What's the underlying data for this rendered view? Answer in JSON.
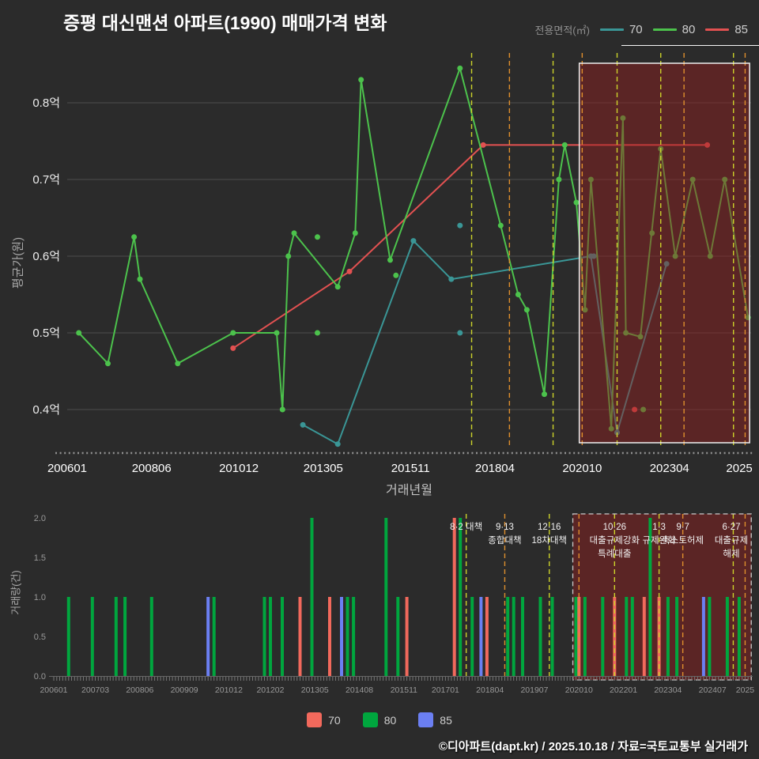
{
  "title": "증평 대신맨션 아파트(1990) 매매가격 변화",
  "footer": "©디아파트(dapt.kr) / 2025.10.18 / 자료=국토교통부 실거래가",
  "legend_top": {
    "label": "전용면적(㎡)",
    "items": [
      {
        "label": "70",
        "color": "#3a9696"
      },
      {
        "label": "80",
        "color": "#4cc24c"
      },
      {
        "label": "85",
        "color": "#e25151"
      }
    ]
  },
  "legend_bottom": {
    "items": [
      {
        "label": "70",
        "color": "#f2695c"
      },
      {
        "label": "80",
        "color": "#00a63e"
      },
      {
        "label": "85",
        "color": "#6b7ff2"
      }
    ]
  },
  "chart_data": [
    {
      "type": "line",
      "title": "매매가격 변화",
      "xlabel": "거래년월",
      "ylabel": "평균가(원)",
      "unit": "억원",
      "ylim": [
        0.33,
        0.87
      ],
      "yticks": [
        0.4,
        0.5,
        0.6,
        0.7,
        0.8
      ],
      "ytick_labels": [
        "0.4억",
        "0.5억",
        "0.6억",
        "0.7억",
        "0.8억"
      ],
      "xticks": [
        {
          "label": "200601",
          "month": "200601"
        },
        {
          "label": "200806",
          "month": "200806"
        },
        {
          "label": "201012",
          "month": "201012"
        },
        {
          "label": "201305",
          "month": "201305"
        },
        {
          "label": "201511",
          "month": "201511"
        },
        {
          "label": "201804",
          "month": "201804"
        },
        {
          "label": "202010",
          "month": "202010"
        },
        {
          "label": "202304",
          "month": "202304"
        },
        {
          "label": "2025",
          "month": "202504"
        }
      ],
      "series": [
        {
          "name": "70",
          "color": "#3a9696",
          "points": [
            [
              "201210",
              0.38
            ],
            [
              "201310",
              0.355
            ],
            [
              "201512",
              0.62
            ],
            [
              "201701",
              0.57
            ],
            [
              "202101",
              0.6
            ],
            [
              "202110",
              0.37
            ],
            [
              "202303",
              0.59
            ]
          ],
          "isolated": [
            [
              "201704",
              0.64
            ],
            [
              "201704",
              0.5
            ],
            [
              "202102",
              0.6
            ]
          ]
        },
        {
          "name": "80",
          "color": "#4cc24c",
          "points": [
            [
              "200605",
              0.5
            ],
            [
              "200703",
              0.46
            ],
            [
              "200712",
              0.625
            ],
            [
              "200802",
              0.57
            ],
            [
              "200903",
              0.46
            ],
            [
              "201010",
              0.5
            ],
            [
              "201201",
              0.5
            ],
            [
              "201203",
              0.4
            ],
            [
              "201205",
              0.6
            ],
            [
              "201207",
              0.63
            ],
            [
              "201310",
              0.56
            ],
            [
              "201404",
              0.63
            ],
            [
              "201406",
              0.83
            ],
            [
              "201504",
              0.595
            ],
            [
              "201704",
              0.845
            ],
            [
              "201806",
              0.64
            ],
            [
              "201812",
              0.55
            ],
            [
              "201903",
              0.53
            ],
            [
              "201909",
              0.42
            ],
            [
              "202002",
              0.7
            ],
            [
              "202004",
              0.745
            ],
            [
              "202008",
              0.67
            ],
            [
              "202011",
              0.53
            ],
            [
              "202101",
              0.7
            ],
            [
              "202108",
              0.375
            ],
            [
              "202112",
              0.78
            ],
            [
              "202201",
              0.5
            ],
            [
              "202206",
              0.495
            ],
            [
              "202301",
              0.74
            ],
            [
              "202306",
              0.6
            ],
            [
              "202312",
              0.7
            ],
            [
              "202406",
              0.6
            ],
            [
              "202411",
              0.7
            ],
            [
              "202507",
              0.52
            ]
          ],
          "isolated": [
            [
              "201303",
              0.625
            ],
            [
              "201303",
              0.5
            ],
            [
              "201506",
              0.575
            ],
            [
              "202207",
              0.4
            ],
            [
              "202210",
              0.63
            ]
          ]
        },
        {
          "name": "85",
          "color": "#e25151",
          "points": [
            [
              "201010",
              0.48
            ],
            [
              "201402",
              0.58
            ],
            [
              "201712",
              0.745
            ],
            [
              "202405",
              0.745
            ]
          ],
          "isolated": [
            [
              "202204",
              0.4
            ]
          ]
        }
      ],
      "vlines": [
        {
          "month": "201708",
          "color": "#ccd22b"
        },
        {
          "month": "201809",
          "color": "#df8f2d"
        },
        {
          "month": "201912",
          "color": "#ccd22b"
        },
        {
          "month": "202010",
          "color": "#df8f2d"
        },
        {
          "month": "202110",
          "color": "#ccd22b"
        },
        {
          "month": "202301",
          "color": "#ccd22b"
        },
        {
          "month": "202309",
          "color": "#df8f2d"
        },
        {
          "month": "202502",
          "color": "#ccd22b"
        },
        {
          "month": "202506",
          "color": "#df8f2d"
        }
      ],
      "highlight": {
        "from": "202009",
        "to": "202507",
        "fill": "rgba(150,30,30,0.45)",
        "border": "#f0f0f0"
      }
    },
    {
      "type": "bar",
      "ylabel": "거래량(건)",
      "ylim": [
        0,
        2
      ],
      "yticks": [
        0,
        0.5,
        1,
        1.5,
        2
      ],
      "ytick_labels": [
        "0.0",
        "0.5",
        "1.0",
        "1.5",
        "2.0"
      ],
      "series_colors": {
        "70": "#f2695c",
        "80": "#00a63e",
        "85": "#6b7ff2"
      },
      "xticks": [
        {
          "label": "200601",
          "month": "200601"
        },
        {
          "label": "200703",
          "month": "200703"
        },
        {
          "label": "200806",
          "month": "200806"
        },
        {
          "label": "200909",
          "month": "200909"
        },
        {
          "label": "201012",
          "month": "201012"
        },
        {
          "label": "201202",
          "month": "201202"
        },
        {
          "label": "201305",
          "month": "201305"
        },
        {
          "label": "201408",
          "month": "201408"
        },
        {
          "label": "201511",
          "month": "201511"
        },
        {
          "label": "201701",
          "month": "201701"
        },
        {
          "label": "201804",
          "month": "201804"
        },
        {
          "label": "201907",
          "month": "201907"
        },
        {
          "label": "202010",
          "month": "202010"
        },
        {
          "label": "202201",
          "month": "202201"
        },
        {
          "label": "202304",
          "month": "202304"
        },
        {
          "label": "202407",
          "month": "202407"
        },
        {
          "label": "2025",
          "month": "202506"
        }
      ],
      "bars": [
        {
          "month": "200606",
          "size": "80",
          "count": 1
        },
        {
          "month": "200702",
          "size": "80",
          "count": 1
        },
        {
          "month": "200710",
          "size": "80",
          "count": 1
        },
        {
          "month": "200801",
          "size": "80",
          "count": 1
        },
        {
          "month": "200810",
          "size": "80",
          "count": 1
        },
        {
          "month": "201005",
          "size": "85",
          "count": 1
        },
        {
          "month": "201007",
          "size": "80",
          "count": 1
        },
        {
          "month": "201112",
          "size": "80",
          "count": 1
        },
        {
          "month": "201202",
          "size": "80",
          "count": 1
        },
        {
          "month": "201206",
          "size": "80",
          "count": 1
        },
        {
          "month": "201212",
          "size": "70",
          "count": 1
        },
        {
          "month": "201304",
          "size": "80",
          "count": 2
        },
        {
          "month": "201310",
          "size": "70",
          "count": 1
        },
        {
          "month": "201402",
          "size": "85",
          "count": 1
        },
        {
          "month": "201404",
          "size": "80",
          "count": 1
        },
        {
          "month": "201406",
          "size": "80",
          "count": 1
        },
        {
          "month": "201505",
          "size": "80",
          "count": 2
        },
        {
          "month": "201509",
          "size": "80",
          "count": 1
        },
        {
          "month": "201512",
          "size": "70",
          "count": 1
        },
        {
          "month": "201704",
          "size": "70",
          "count": 2
        },
        {
          "month": "201706",
          "size": "80",
          "count": 2
        },
        {
          "month": "201710",
          "size": "80",
          "count": 1
        },
        {
          "month": "201801",
          "size": "85",
          "count": 1
        },
        {
          "month": "201803",
          "size": "70",
          "count": 1
        },
        {
          "month": "201810",
          "size": "80",
          "count": 1
        },
        {
          "month": "201812",
          "size": "80",
          "count": 1
        },
        {
          "month": "201903",
          "size": "80",
          "count": 1
        },
        {
          "month": "201909",
          "size": "80",
          "count": 1
        },
        {
          "month": "202001",
          "size": "80",
          "count": 1
        },
        {
          "month": "202009",
          "size": "80",
          "count": 1
        },
        {
          "month": "202010",
          "size": "70",
          "count": 1
        },
        {
          "month": "202012",
          "size": "80",
          "count": 1
        },
        {
          "month": "202106",
          "size": "80",
          "count": 1
        },
        {
          "month": "202110",
          "size": "70",
          "count": 1
        },
        {
          "month": "202202",
          "size": "80",
          "count": 1
        },
        {
          "month": "202204",
          "size": "80",
          "count": 1
        },
        {
          "month": "202208",
          "size": "70",
          "count": 1
        },
        {
          "month": "202210",
          "size": "80",
          "count": 2
        },
        {
          "month": "202301",
          "size": "70",
          "count": 1
        },
        {
          "month": "202304",
          "size": "80",
          "count": 1
        },
        {
          "month": "202307",
          "size": "80",
          "count": 1
        },
        {
          "month": "202404",
          "size": "85",
          "count": 1
        },
        {
          "month": "202406",
          "size": "80",
          "count": 1
        },
        {
          "month": "202412",
          "size": "80",
          "count": 1
        },
        {
          "month": "202504",
          "size": "80",
          "count": 1
        }
      ],
      "vlines": [
        {
          "month": "201708",
          "color": "#ccd22b"
        },
        {
          "month": "201809",
          "color": "#df8f2d"
        },
        {
          "month": "201912",
          "color": "#ccd22b"
        },
        {
          "month": "202010",
          "color": "#df8f2d"
        },
        {
          "month": "202110",
          "color": "#ccd22b"
        },
        {
          "month": "202301",
          "color": "#ccd22b"
        },
        {
          "month": "202309",
          "color": "#df8f2d"
        },
        {
          "month": "202502",
          "color": "#ccd22b"
        },
        {
          "month": "202506",
          "color": "#df8f2d"
        }
      ],
      "annotations": [
        {
          "month": "201708",
          "lines": [
            "8·2 대책"
          ]
        },
        {
          "month": "201809",
          "lines": [
            "9·13",
            "종합대책"
          ]
        },
        {
          "month": "201912",
          "lines": [
            "12·16",
            "18차대책"
          ]
        },
        {
          "month": "202110",
          "lines": [
            "10·26",
            "대출규제강화",
            "특례대출"
          ]
        },
        {
          "month": "202301",
          "lines": [
            "1·3",
            "규제완화"
          ]
        },
        {
          "month": "202309",
          "lines": [
            "9·7",
            "축소토허제"
          ]
        },
        {
          "month": "202506",
          "lines": [
            "6·27",
            "대출규제",
            "해제"
          ]
        }
      ],
      "highlight": {
        "from": "202009",
        "to": "202507",
        "fill": "rgba(150,30,30,0.45)",
        "border": "#cccccc"
      }
    }
  ]
}
